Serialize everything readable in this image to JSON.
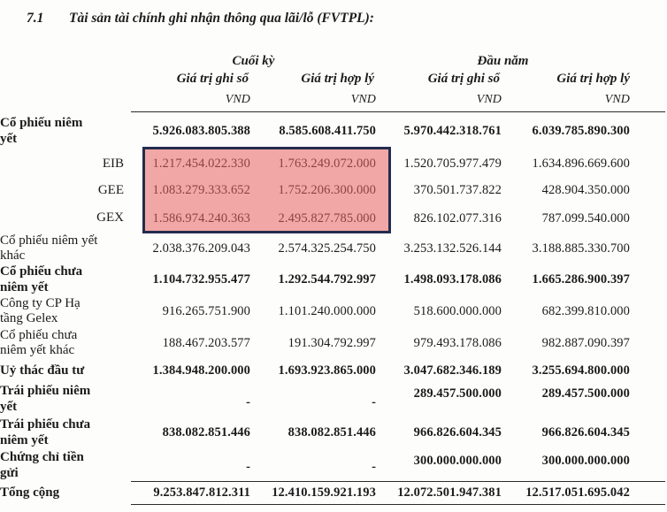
{
  "document": {
    "section_number": "7.1",
    "section_title": "Tài sản tài chính ghi nhận thông qua lãi/lỗ (FVTPL):"
  },
  "table": {
    "column_groups": [
      {
        "label": "Cuối kỳ",
        "span": 2
      },
      {
        "label": "Đầu năm",
        "span": 2
      }
    ],
    "columns": [
      "Giá trị ghi sổ",
      "Giá trị hợp lý",
      "Giá trị ghi sổ",
      "Giá trị hợp lý"
    ],
    "unit_label": "VND",
    "rows": [
      {
        "label": "Cổ phiếu niêm\nyết",
        "bold": true,
        "align": "left",
        "values": [
          "5.926.083.805.388",
          "8.585.608.411.750",
          "5.970.442.318.761",
          "6.039.785.890.300"
        ]
      },
      {
        "label": "EIB",
        "bold": false,
        "align": "right",
        "highlighted": true,
        "values": [
          "1.217.454.022.330",
          "1.763.249.072.000",
          "1.520.705.977.479",
          "1.634.896.669.600"
        ]
      },
      {
        "label": "GEE",
        "bold": false,
        "align": "right",
        "highlighted": true,
        "values": [
          "1.083.279.333.652",
          "1.752.206.300.000",
          "370.501.737.822",
          "428.904.350.000"
        ]
      },
      {
        "label": "GEX",
        "bold": false,
        "align": "right",
        "highlighted": true,
        "values": [
          "1.586.974.240.363",
          "2.495.827.785.000",
          "826.102.077.316",
          "787.099.540.000"
        ]
      },
      {
        "label": "Cổ phiếu niêm yết\nkhác",
        "bold": false,
        "align": "left",
        "values": [
          "2.038.376.209.043",
          "2.574.325.254.750",
          "3.253.132.526.144",
          "3.188.885.330.700"
        ]
      },
      {
        "label": "Cổ phiếu chưa\nniêm yết",
        "bold": true,
        "align": "left",
        "values": [
          "1.104.732.955.477",
          "1.292.544.792.997",
          "1.498.093.178.086",
          "1.665.286.900.397"
        ]
      },
      {
        "label": "Công ty CP Hạ\ntầng Gelex",
        "bold": false,
        "align": "left",
        "values": [
          "916.265.751.900",
          "1.101.240.000.000",
          "518.600.000.000",
          "682.399.810.000"
        ]
      },
      {
        "label": "Cổ phiếu chưa\nniêm yết khác",
        "bold": false,
        "align": "left",
        "values": [
          "188.467.203.577",
          "191.304.792.997",
          "979.493.178.086",
          "982.887.090.397"
        ]
      },
      {
        "label": "Uỷ thác đầu tư",
        "bold": true,
        "align": "left",
        "values": [
          "1.384.948.200.000",
          "1.693.923.865.000",
          "3.047.682.346.189",
          "3.255.694.800.000"
        ]
      },
      {
        "label": "Trái phiếu niêm\nyết",
        "bold": true,
        "align": "left",
        "values": [
          "-",
          "-",
          "289.457.500.000",
          "289.457.500.000"
        ]
      },
      {
        "label": "Trái phiếu chưa\nniêm yết",
        "bold": true,
        "align": "left",
        "values": [
          "838.082.851.446",
          "838.082.851.446",
          "966.826.604.345",
          "966.826.604.345"
        ]
      },
      {
        "label": "Chứng chỉ tiền\ngửi",
        "bold": true,
        "align": "left",
        "values": [
          "-",
          "-",
          "300.000.000.000",
          "300.000.000.000"
        ]
      },
      {
        "label": "Tổng cộng",
        "bold": true,
        "align": "left",
        "total": true,
        "values": [
          "9.253.847.812.311",
          "12.410.159.921.193",
          "12.072.501.947.381",
          "12.517.051.695.042"
        ]
      }
    ]
  },
  "annotation": {
    "type": "highlight-box",
    "fill_color": "#E8615D",
    "fill_opacity": 0.55,
    "border_color": "#232C4E",
    "covers_rows": [
      "EIB",
      "GEE",
      "GEX"
    ],
    "covers_columns": [
      "Cuối kỳ – Giá trị ghi sổ",
      "Cuối kỳ – Giá trị hợp lý"
    ]
  }
}
